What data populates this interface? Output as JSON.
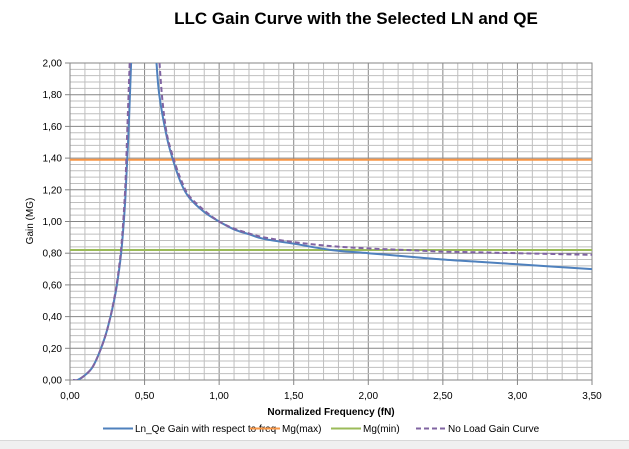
{
  "chart_data": {
    "type": "line",
    "title": "LLC Gain Curve with the Selected  LN and QE",
    "xlabel": "Normalized Frequency (fN)",
    "ylabel": "Gain (MG)",
    "xlim": [
      0,
      3.5
    ],
    "ylim": [
      0,
      2
    ],
    "grid": true,
    "legend_position": "bottom",
    "x_ticks": [
      "0,00",
      "0,50",
      "1,00",
      "1,50",
      "2,00",
      "2,50",
      "3,00",
      "3,50"
    ],
    "x_tick_values": [
      0,
      0.5,
      1,
      1.5,
      2,
      2.5,
      3,
      3.5
    ],
    "y_ticks": [
      "0,00",
      "0,20",
      "0,40",
      "0,60",
      "0,80",
      "1,00",
      "1,20",
      "1,40",
      "1,60",
      "1,80",
      "2,00"
    ],
    "y_tick_values": [
      0,
      0.2,
      0.4,
      0.6,
      0.8,
      1.0,
      1.2,
      1.4,
      1.6,
      1.8,
      2.0
    ],
    "series": [
      {
        "name": "Ln_Qe Gain with respect to freq",
        "color": "#4f81bd",
        "style": "solid",
        "x": [
          0.02,
          0.05,
          0.1,
          0.15,
          0.2,
          0.25,
          0.3,
          0.33,
          0.35,
          0.37,
          0.39,
          0.41,
          0.58,
          0.6,
          0.65,
          0.7,
          0.75,
          0.8,
          0.9,
          1.0,
          1.1,
          1.2,
          1.3,
          1.5,
          1.75,
          2.0,
          2.25,
          2.5,
          2.75,
          3.0,
          3.25,
          3.5
        ],
        "values": [
          0.0,
          0.0,
          0.03,
          0.08,
          0.18,
          0.32,
          0.52,
          0.7,
          0.87,
          1.13,
          1.52,
          2.0,
          2.0,
          1.79,
          1.53,
          1.36,
          1.23,
          1.15,
          1.06,
          1.0,
          0.95,
          0.92,
          0.89,
          0.86,
          0.82,
          0.8,
          0.78,
          0.76,
          0.745,
          0.73,
          0.715,
          0.7
        ]
      },
      {
        "name": "Mg(max)",
        "color": "#f79646",
        "style": "solid",
        "x": [
          0,
          3.5
        ],
        "values": [
          1.39,
          1.39
        ]
      },
      {
        "name": "Mg(min)",
        "color": "#9bbb59",
        "style": "solid",
        "x": [
          0,
          3.5
        ],
        "values": [
          0.82,
          0.82
        ]
      },
      {
        "name": "No Load Gain Curve",
        "color": "#8064a2",
        "style": "dashed",
        "x": [
          0.02,
          0.05,
          0.1,
          0.15,
          0.2,
          0.25,
          0.3,
          0.33,
          0.35,
          0.37,
          0.385,
          0.4,
          0.6,
          0.62,
          0.65,
          0.7,
          0.75,
          0.8,
          0.9,
          1.0,
          1.1,
          1.2,
          1.3,
          1.5,
          1.75,
          2.0,
          2.25,
          2.5,
          2.75,
          3.0,
          3.25,
          3.5
        ],
        "values": [
          0.0,
          0.0,
          0.03,
          0.08,
          0.18,
          0.32,
          0.53,
          0.72,
          0.91,
          1.21,
          1.6,
          2.0,
          2.0,
          1.76,
          1.55,
          1.38,
          1.25,
          1.16,
          1.07,
          1.0,
          0.955,
          0.925,
          0.9,
          0.87,
          0.845,
          0.83,
          0.82,
          0.81,
          0.805,
          0.8,
          0.795,
          0.79
        ]
      }
    ]
  }
}
